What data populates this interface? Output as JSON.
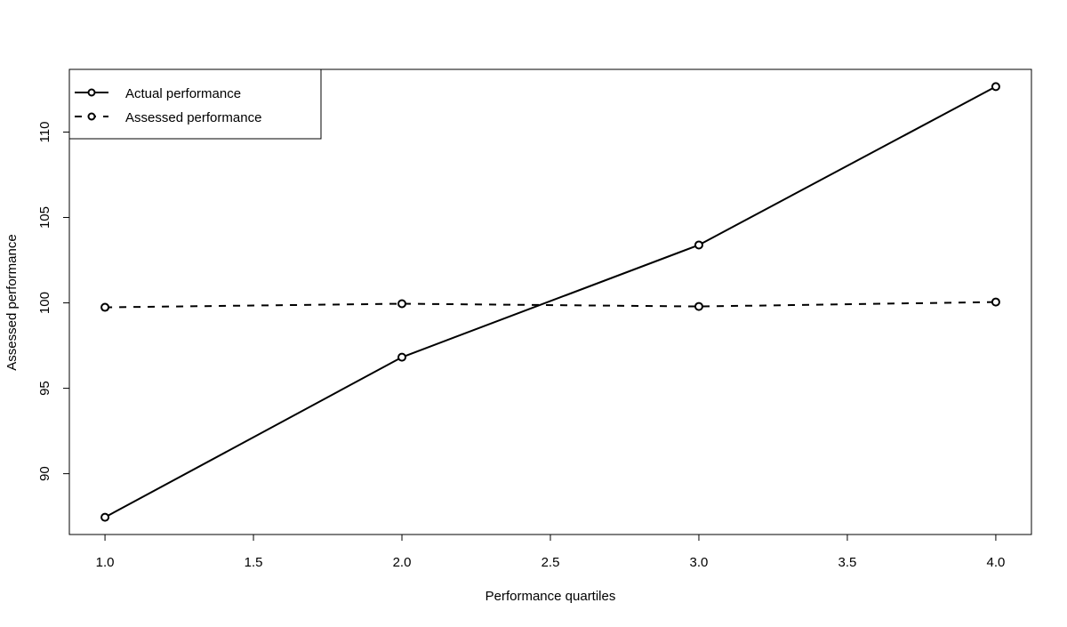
{
  "chart_data": {
    "type": "line",
    "title": "",
    "xlabel": "Performance quartiles",
    "ylabel": "Assessed performance",
    "xlim": [
      0.88,
      4.12
    ],
    "ylim": [
      86.44,
      113.67
    ],
    "x_ticks": [
      "1.0",
      "1.5",
      "2.0",
      "2.5",
      "3.0",
      "3.5",
      "4.0"
    ],
    "y_ticks": [
      "90",
      "95",
      "100",
      "105",
      "110"
    ],
    "grid": false,
    "legend_position": "top-left",
    "x": [
      1,
      2,
      3,
      4
    ],
    "series": [
      {
        "name": "Actual performance",
        "values": [
          87.45,
          96.82,
          103.39,
          112.66
        ],
        "dash": "solid",
        "marker": "open-circle",
        "color": "#000000"
      },
      {
        "name": "Assessed performance",
        "values": [
          99.74,
          99.95,
          99.79,
          100.05
        ],
        "dash": "dashed",
        "marker": "open-circle",
        "color": "#000000"
      }
    ]
  }
}
